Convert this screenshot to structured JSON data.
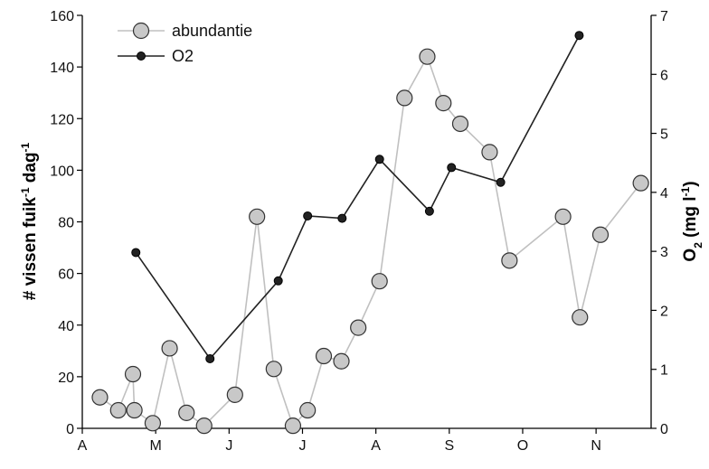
{
  "chart_data": {
    "type": "line",
    "x_axis": {
      "categories": [
        "A",
        "M",
        "J",
        "J",
        "A",
        "S",
        "O",
        "N"
      ],
      "range": [
        0,
        7.75
      ]
    },
    "y_left": {
      "label_main": "# vissen fuik",
      "label_sup1": "-1",
      "label_mid": " dag",
      "label_sup2": "-1",
      "range": [
        0,
        160
      ],
      "ticks": [
        0,
        20,
        40,
        60,
        80,
        100,
        120,
        140,
        160
      ]
    },
    "y_right": {
      "label_main": "O",
      "label_sub": "2",
      "label_mid": " (mg l",
      "label_sup": "-1",
      "label_end": ")",
      "range": [
        0,
        7
      ],
      "ticks": [
        0,
        1,
        2,
        3,
        4,
        5,
        6,
        7
      ]
    },
    "legend": {
      "position": "top-left"
    },
    "series": [
      {
        "name": "abundantie",
        "axis": "left",
        "color": "#c8c8c8",
        "line_color": "#c0c0c0",
        "points": [
          [
            0.24,
            12
          ],
          [
            0.49,
            7
          ],
          [
            0.69,
            21
          ],
          [
            0.71,
            7
          ],
          [
            0.96,
            2
          ],
          [
            1.19,
            31
          ],
          [
            1.42,
            6
          ],
          [
            1.66,
            1
          ],
          [
            2.08,
            13
          ],
          [
            2.38,
            82
          ],
          [
            2.61,
            23
          ],
          [
            2.87,
            1
          ],
          [
            3.07,
            7
          ],
          [
            3.29,
            28
          ],
          [
            3.53,
            26
          ],
          [
            3.76,
            39
          ],
          [
            4.05,
            57
          ],
          [
            4.39,
            128
          ],
          [
            4.7,
            144
          ],
          [
            4.92,
            126
          ],
          [
            5.15,
            118
          ],
          [
            5.55,
            107
          ],
          [
            5.82,
            65
          ],
          [
            6.55,
            82
          ],
          [
            6.78,
            43
          ],
          [
            7.06,
            75
          ],
          [
            7.61,
            95
          ]
        ]
      },
      {
        "name": "O2",
        "axis": "right",
        "color": "#222222",
        "line_color": "#222222",
        "points": [
          [
            0.73,
            2.98
          ],
          [
            1.74,
            1.18
          ],
          [
            2.67,
            2.5
          ],
          [
            3.07,
            3.6
          ],
          [
            3.54,
            3.56
          ],
          [
            4.05,
            4.56
          ],
          [
            4.73,
            3.68
          ],
          [
            5.03,
            4.42
          ],
          [
            5.7,
            4.17
          ],
          [
            6.77,
            6.66
          ]
        ]
      }
    ]
  }
}
